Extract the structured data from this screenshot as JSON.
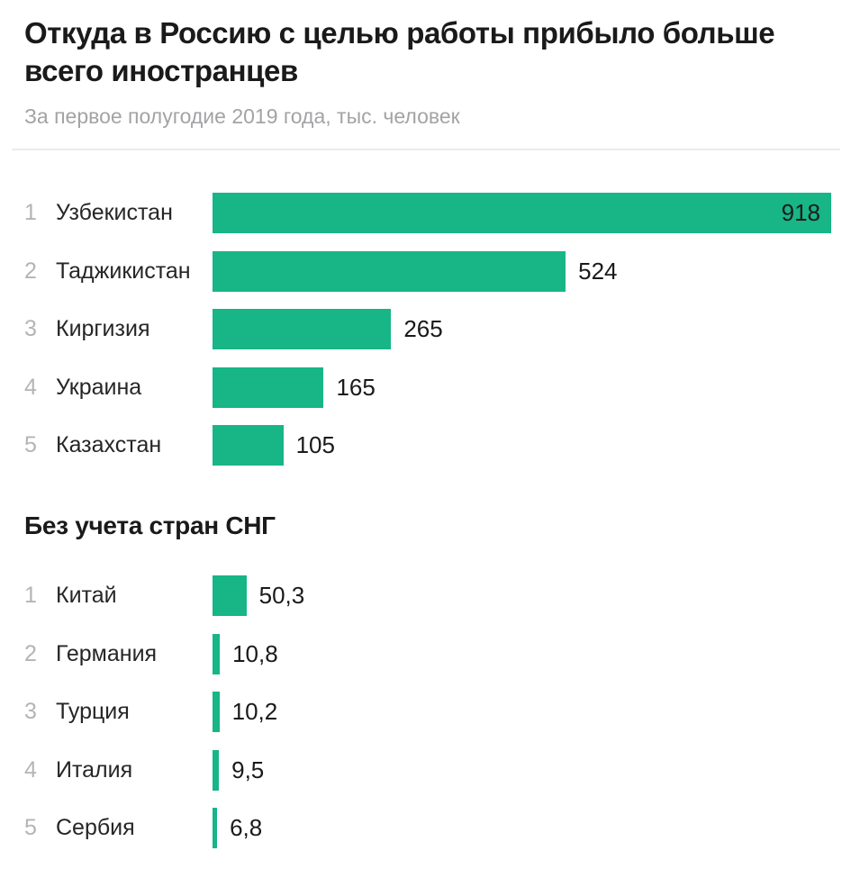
{
  "header": {
    "title": "Откуда в Россию с целью работы прибыло больше всего иностранцев",
    "subtitle": "За первое полугодие 2019 года, тыс. человек"
  },
  "section2": {
    "title": "Без учета стран СНГ"
  },
  "colors": {
    "bar-green": "#18b587",
    "title-text": "#1a1a1a",
    "body-text": "#262626",
    "muted-text": "#a3a3a6",
    "rank-text": "#b4b4b8",
    "divider": "#ececec",
    "value-text": "#1a1a1a"
  },
  "chart_data": [
    {
      "type": "bar",
      "orientation": "horizontal",
      "title": "Откуда в Россию с целью работы прибыло больше всего иностранцев",
      "subtitle": "За первое полугодие 2019 года, тыс. человек",
      "unit": "тыс. человек",
      "ranks": [
        "1",
        "2",
        "3",
        "4",
        "5"
      ],
      "categories": [
        "Узбекистан",
        "Таджикистан",
        "Киргизия",
        "Украина",
        "Казахстан"
      ],
      "values": [
        918,
        524,
        265,
        165,
        105
      ],
      "value_labels": [
        "918",
        "524",
        "265",
        "165",
        "105"
      ],
      "xlim": [
        0,
        918
      ],
      "grid": false,
      "legend": false,
      "bar_color": "#18b587",
      "value_label_position": "outside; inside bar for max value (918)"
    },
    {
      "type": "bar",
      "orientation": "horizontal",
      "title": "Без учета стран СНГ",
      "unit": "тыс. человек",
      "ranks": [
        "1",
        "2",
        "3",
        "4",
        "5"
      ],
      "categories": [
        "Китай",
        "Германия",
        "Турция",
        "Италия",
        "Сербия"
      ],
      "values": [
        50.3,
        10.8,
        10.2,
        9.5,
        6.8
      ],
      "value_labels": [
        "50,3",
        "10,8",
        "10,2",
        "9,5",
        "6,8"
      ],
      "xlim": [
        0,
        918
      ],
      "grid": false,
      "legend": false,
      "bar_color": "#18b587",
      "value_label_position": "outside"
    }
  ]
}
